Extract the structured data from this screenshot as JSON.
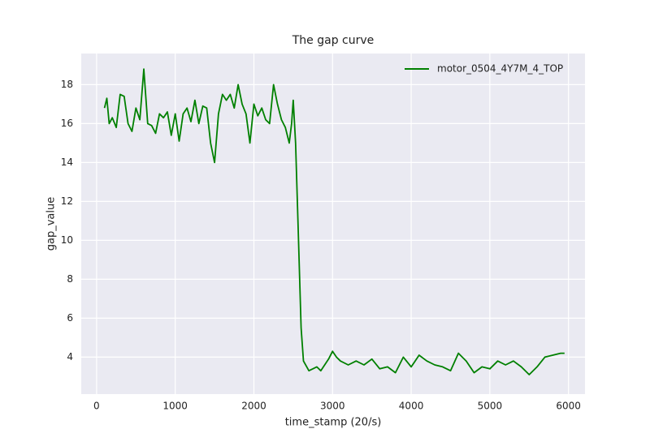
{
  "chart_data": {
    "type": "line",
    "title": "The gap curve",
    "xlabel": "time_stamp (20/s)",
    "ylabel": "gap_value",
    "x": [
      100,
      130,
      160,
      200,
      250,
      300,
      350,
      400,
      450,
      500,
      550,
      600,
      650,
      700,
      750,
      800,
      850,
      900,
      950,
      1000,
      1050,
      1100,
      1150,
      1200,
      1250,
      1300,
      1350,
      1400,
      1450,
      1500,
      1550,
      1600,
      1650,
      1700,
      1750,
      1800,
      1850,
      1900,
      1950,
      2000,
      2050,
      2100,
      2150,
      2200,
      2250,
      2300,
      2350,
      2400,
      2450,
      2480,
      2500,
      2530,
      2560,
      2600,
      2630,
      2700,
      2750,
      2800,
      2850,
      2900,
      2950,
      3000,
      3050,
      3100,
      3200,
      3300,
      3400,
      3500,
      3600,
      3700,
      3800,
      3900,
      4000,
      4100,
      4200,
      4300,
      4400,
      4500,
      4600,
      4700,
      4800,
      4900,
      5000,
      5100,
      5200,
      5300,
      5400,
      5500,
      5600,
      5700,
      5800,
      5900,
      5950
    ],
    "series": [
      {
        "name": "motor_0504_4Y7M_4_TOP",
        "color": "#008000",
        "values": [
          16.8,
          17.3,
          16.0,
          16.3,
          15.8,
          17.5,
          17.4,
          16.0,
          15.6,
          16.8,
          16.2,
          18.8,
          16.0,
          15.9,
          15.5,
          16.5,
          16.3,
          16.6,
          15.4,
          16.5,
          15.1,
          16.5,
          16.8,
          16.1,
          17.2,
          16.0,
          16.9,
          16.8,
          15.0,
          14.0,
          16.5,
          17.5,
          17.2,
          17.5,
          16.8,
          18.0,
          17.0,
          16.5,
          15.0,
          17.0,
          16.4,
          16.8,
          16.2,
          16.0,
          18.0,
          17.0,
          16.2,
          15.8,
          15.0,
          16.0,
          17.2,
          15.0,
          11.0,
          5.5,
          3.8,
          3.3,
          3.4,
          3.5,
          3.3,
          3.6,
          3.9,
          4.3,
          4.0,
          3.8,
          3.6,
          3.8,
          3.6,
          3.9,
          3.4,
          3.5,
          3.2,
          4.0,
          3.5,
          4.1,
          3.8,
          3.6,
          3.5,
          3.3,
          4.2,
          3.8,
          3.2,
          3.5,
          3.4,
          3.8,
          3.6,
          3.8,
          3.5,
          3.1,
          3.5,
          4.0,
          4.1,
          4.2,
          4.2
        ]
      }
    ],
    "xlim": [
      -195,
      6210
    ],
    "ylim": [
      2.1,
      19.6
    ],
    "xticks": [
      0,
      1000,
      2000,
      3000,
      4000,
      5000,
      6000
    ],
    "yticks": [
      4,
      6,
      8,
      10,
      12,
      14,
      16,
      18
    ],
    "grid": true,
    "legend_loc": "upper right"
  }
}
